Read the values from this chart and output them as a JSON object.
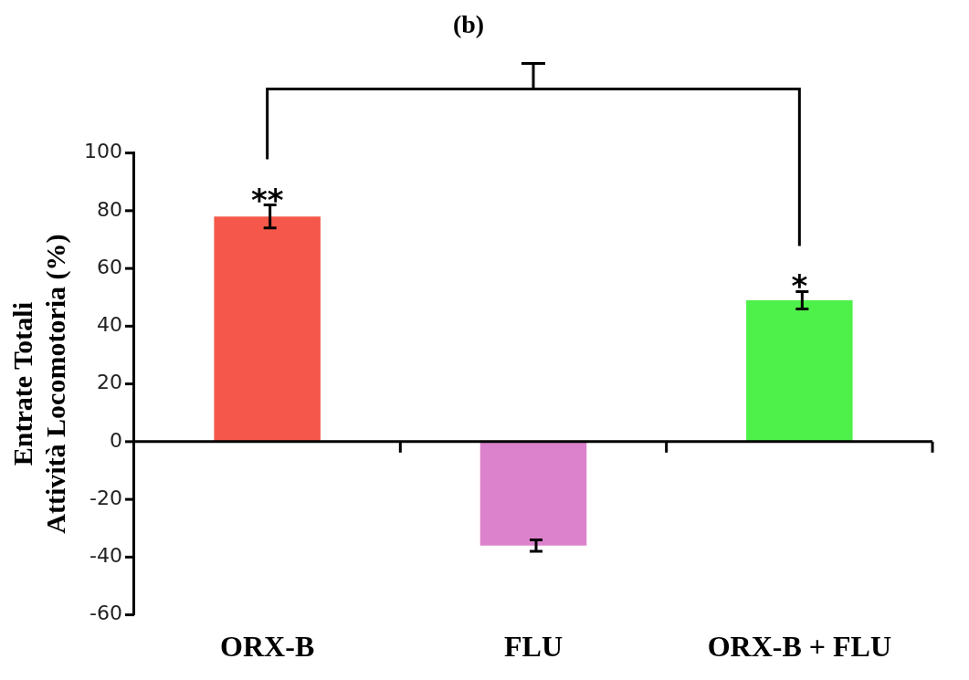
{
  "chart_data": {
    "type": "bar",
    "title": "(b)",
    "ylabel": "Entrate Totali\nAttività Locomotoria (%)",
    "categories": [
      "ORX-B",
      "FLU",
      "ORX-B + FLU"
    ],
    "values": [
      78,
      -36,
      49
    ],
    "errors": [
      4,
      2,
      3
    ],
    "colors": [
      "#f5584a",
      "#dc82cc",
      "#4ef04a"
    ],
    "ylim": [
      -60,
      100
    ],
    "yticks": [
      -60,
      -40,
      -20,
      0,
      20,
      40,
      60,
      80,
      100
    ],
    "legend": false,
    "annotations": [
      {
        "text": "**",
        "x": "ORX-B",
        "y": 82
      },
      {
        "text": "*",
        "x": "ORX-B + FLU",
        "y": 52
      }
    ]
  }
}
